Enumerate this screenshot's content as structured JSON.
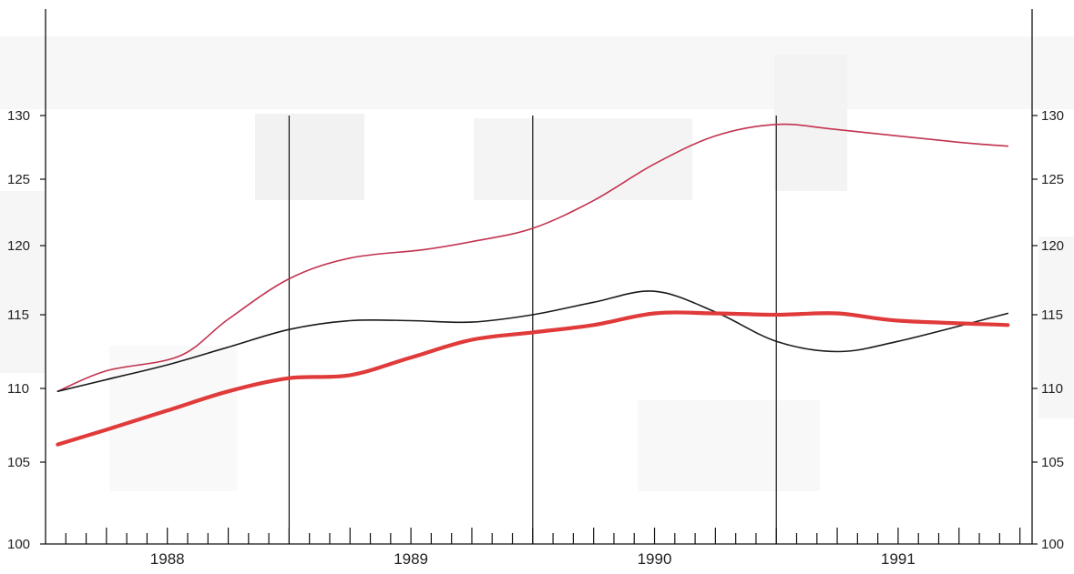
{
  "chart_data": {
    "type": "line",
    "title": "",
    "xlabel": "",
    "ylabel": "",
    "ylim": [
      100,
      135
    ],
    "y_ticks": [
      100,
      105,
      110,
      115,
      120,
      125,
      130
    ],
    "x_range": [
      1987.75,
      1991.8
    ],
    "x_ticks": [
      {
        "label": "1988",
        "at": 1988.25
      },
      {
        "label": "1989",
        "at": 1989.25
      },
      {
        "label": "1990",
        "at": 1990.25
      },
      {
        "label": "1991",
        "at": 1991.25
      }
    ],
    "vertical_dividers": [
      1988.75,
      1989.75,
      1990.75
    ],
    "grid": false,
    "series": [
      {
        "color": "#c2314f",
        "width": 1.6,
        "points": [
          [
            1987.8,
            109.8
          ],
          [
            1988.0,
            111.2
          ],
          [
            1988.3,
            112.2
          ],
          [
            1988.5,
            114.7
          ],
          [
            1988.75,
            117.6
          ],
          [
            1989.0,
            119.1
          ],
          [
            1989.3,
            119.7
          ],
          [
            1989.5,
            120.3
          ],
          [
            1989.75,
            121.3
          ],
          [
            1990.0,
            123.4
          ],
          [
            1990.25,
            126.2
          ],
          [
            1990.5,
            128.4
          ],
          [
            1990.75,
            129.3
          ],
          [
            1991.0,
            128.9
          ],
          [
            1991.5,
            127.9
          ],
          [
            1991.7,
            127.6
          ]
        ]
      },
      {
        "color": "#1a1a1a",
        "width": 1.6,
        "points": [
          [
            1987.8,
            109.8
          ],
          [
            1988.0,
            110.6
          ],
          [
            1988.25,
            111.6
          ],
          [
            1988.5,
            112.8
          ],
          [
            1988.75,
            114.0
          ],
          [
            1989.0,
            114.6
          ],
          [
            1989.25,
            114.6
          ],
          [
            1989.5,
            114.5
          ],
          [
            1989.75,
            115.0
          ],
          [
            1990.0,
            115.9
          ],
          [
            1990.25,
            116.7
          ],
          [
            1990.5,
            115.2
          ],
          [
            1990.75,
            113.2
          ],
          [
            1991.0,
            112.5
          ],
          [
            1991.25,
            113.2
          ],
          [
            1991.7,
            115.1
          ]
        ]
      },
      {
        "color": "#e03a3a",
        "width": 4.2,
        "points": [
          [
            1987.8,
            106.2
          ],
          [
            1988.0,
            107.2
          ],
          [
            1988.25,
            108.5
          ],
          [
            1988.5,
            109.8
          ],
          [
            1988.75,
            110.7
          ],
          [
            1989.0,
            110.9
          ],
          [
            1989.25,
            112.1
          ],
          [
            1989.5,
            113.3
          ],
          [
            1989.75,
            113.8
          ],
          [
            1990.0,
            114.3
          ],
          [
            1990.25,
            115.1
          ],
          [
            1990.5,
            115.1
          ],
          [
            1990.75,
            115.0
          ],
          [
            1991.0,
            115.1
          ],
          [
            1991.25,
            114.6
          ],
          [
            1991.7,
            114.3
          ]
        ]
      }
    ]
  }
}
